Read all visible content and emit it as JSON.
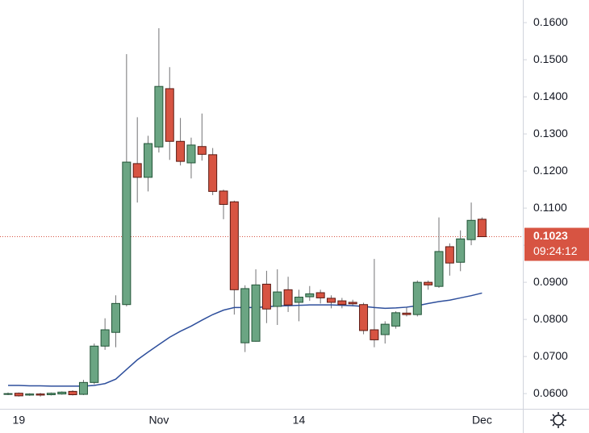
{
  "chart_data": {
    "type": "candlestick",
    "categories": [
      null,
      "19",
      null,
      null,
      null,
      null,
      null,
      null,
      null,
      null,
      null,
      null,
      null,
      null,
      "Nov",
      null,
      null,
      null,
      null,
      null,
      null,
      null,
      null,
      null,
      null,
      null,
      null,
      "14",
      null,
      null,
      null,
      null,
      null,
      null,
      null,
      null,
      null,
      null,
      null,
      null,
      null,
      null,
      null,
      null,
      "Dec"
    ],
    "open": [
      0.0598,
      0.0601,
      0.0596,
      0.0599,
      0.0597,
      0.0599,
      0.0606,
      0.0598,
      0.063,
      0.0728,
      0.0765,
      0.084,
      0.122,
      0.1183,
      0.1265,
      0.1422,
      0.128,
      0.1222,
      0.1266,
      0.1244,
      0.1146,
      0.1117,
      0.0737,
      0.0741,
      0.0895,
      0.0835,
      0.088,
      0.0846,
      0.0861,
      0.0872,
      0.0857,
      0.085,
      0.0846,
      0.084,
      0.0772,
      0.0759,
      0.0782,
      0.0817,
      0.0813,
      0.09,
      0.0889,
      0.0996,
      0.0954,
      0.1015,
      0.107
    ],
    "high": [
      0.0603,
      0.0603,
      0.0601,
      0.0602,
      0.0603,
      0.0606,
      0.0609,
      0.0637,
      0.0735,
      0.0803,
      0.0865,
      0.1515,
      0.1345,
      0.1295,
      0.1585,
      0.148,
      0.1343,
      0.129,
      0.1355,
      0.1262,
      0.115,
      0.112,
      0.0892,
      0.0935,
      0.0931,
      0.0935,
      0.0915,
      0.088,
      0.089,
      0.088,
      0.0865,
      0.0858,
      0.0853,
      0.0845,
      0.0963,
      0.0795,
      0.0822,
      0.0833,
      0.0905,
      0.0905,
      0.1075,
      0.1005,
      0.104,
      0.1115,
      0.1075
    ],
    "low": [
      0.0596,
      0.0592,
      0.0594,
      0.0592,
      0.0595,
      0.0597,
      0.0595,
      0.0596,
      0.0625,
      0.0718,
      0.0725,
      0.0835,
      0.1115,
      0.1145,
      0.125,
      0.123,
      0.1215,
      0.118,
      0.1228,
      0.1135,
      0.107,
      0.0813,
      0.0712,
      0.074,
      0.079,
      0.0785,
      0.082,
      0.0795,
      0.085,
      0.0843,
      0.083,
      0.083,
      0.0835,
      0.076,
      0.0725,
      0.0735,
      0.0775,
      0.0808,
      0.0808,
      0.088,
      0.0885,
      0.0918,
      0.093,
      0.1,
      0.1022
    ],
    "close": [
      0.06,
      0.0594,
      0.0599,
      0.0596,
      0.0601,
      0.0604,
      0.0597,
      0.063,
      0.0728,
      0.0772,
      0.0843,
      0.1224,
      0.1183,
      0.1274,
      0.1428,
      0.128,
      0.1226,
      0.127,
      0.1245,
      0.1145,
      0.111,
      0.088,
      0.0883,
      0.0893,
      0.0828,
      0.0874,
      0.0839,
      0.086,
      0.0869,
      0.0858,
      0.0846,
      0.084,
      0.0842,
      0.077,
      0.0745,
      0.0787,
      0.0818,
      0.0813,
      0.09,
      0.0893,
      0.0983,
      0.0952,
      0.1017,
      0.1067,
      0.1023
    ],
    "ma": [
      0.0622,
      0.0622,
      0.0621,
      0.0621,
      0.062,
      0.062,
      0.062,
      0.062,
      0.0622,
      0.0627,
      0.0639,
      0.0665,
      0.0691,
      0.0712,
      0.0732,
      0.0752,
      0.0768,
      0.0782,
      0.0798,
      0.0813,
      0.0825,
      0.0832,
      0.0832,
      0.0832,
      0.0834,
      0.0836,
      0.0837,
      0.0838,
      0.0839,
      0.0839,
      0.0839,
      0.0838,
      0.0837,
      0.0835,
      0.0832,
      0.083,
      0.0831,
      0.0833,
      0.0837,
      0.0843,
      0.0848,
      0.0852,
      0.0858,
      0.0864,
      0.0871
    ],
    "up_color": "#6ba583",
    "up_border": "#225437",
    "down_color": "#d75442",
    "down_border": "#5b1a13",
    "wick_color": "#737375",
    "ma_color": "#2e4f9c",
    "ylim": [
      0.0559,
      0.1661
    ],
    "yticks": [
      {
        "value": 0.16,
        "label": "0.1600"
      },
      {
        "value": 0.15,
        "label": "0.1500"
      },
      {
        "value": 0.14,
        "label": "0.1400"
      },
      {
        "value": 0.13,
        "label": "0.1300"
      },
      {
        "value": 0.12,
        "label": "0.1200"
      },
      {
        "value": 0.11,
        "label": "0.1100"
      },
      {
        "value": 0.1,
        "label": "0.1000"
      },
      {
        "value": 0.09,
        "label": "0.0900"
      },
      {
        "value": 0.08,
        "label": "0.0800"
      },
      {
        "value": 0.07,
        "label": "0.0700"
      },
      {
        "value": 0.06,
        "label": "0.0600"
      }
    ],
    "last_price": 0.1023,
    "countdown": "09:24:12"
  }
}
